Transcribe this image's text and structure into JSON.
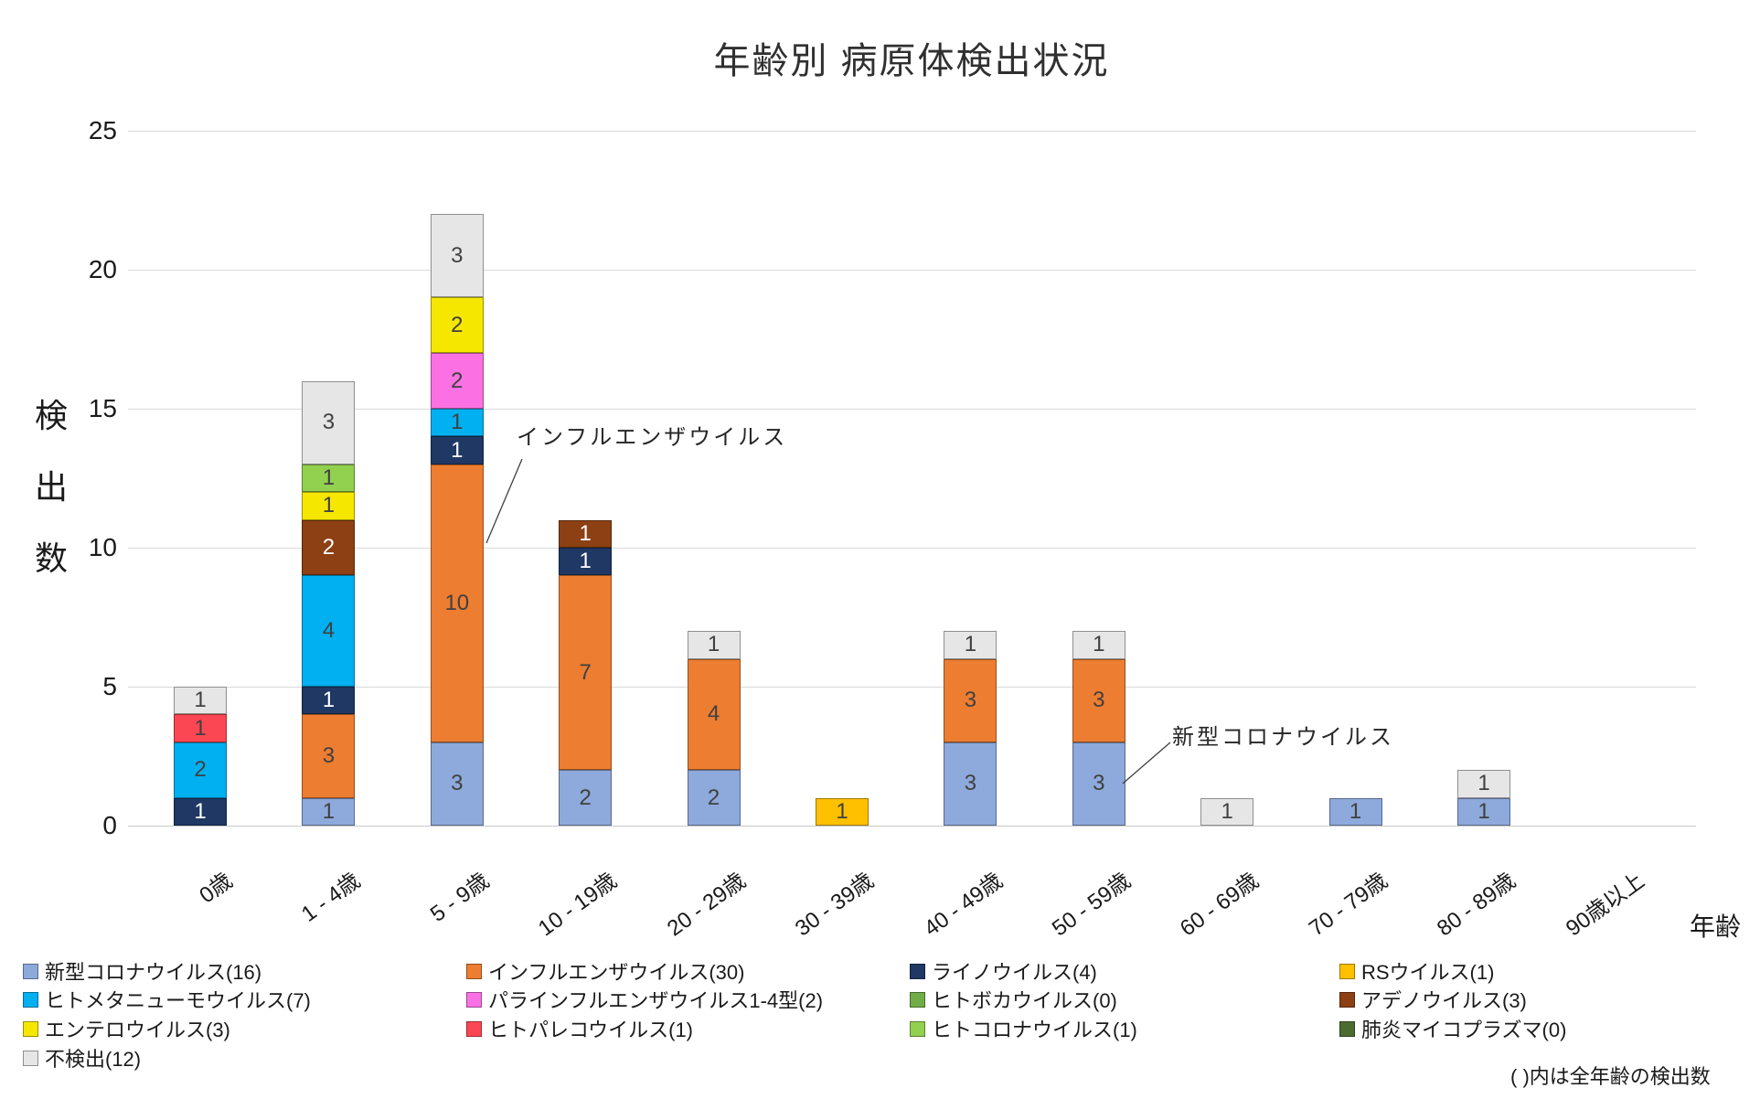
{
  "chart_data": {
    "type": "bar",
    "stacked": true,
    "title": "年齢別 病原体検出状況",
    "ylabel": "検出数",
    "xlabel": "年齢",
    "ylim": [
      0,
      25
    ],
    "yticks": [
      0,
      5,
      10,
      15,
      20,
      25
    ],
    "grid": "horizontal",
    "legend_position": "bottom",
    "categories": [
      "0歳",
      "1 - 4歳",
      "5 - 9歳",
      "10 - 19歳",
      "20 - 29歳",
      "30 - 39歳",
      "40 - 49歳",
      "50 - 59歳",
      "60 - 69歳",
      "70 - 79歳",
      "80 - 89歳",
      "90歳以上"
    ],
    "series": [
      {
        "name": "新型コロナウイルス",
        "total": 16,
        "legend_label": "新型コロナウイルス(16)",
        "color": "#8EA9DB",
        "values": [
          0,
          1,
          3,
          2,
          2,
          0,
          3,
          3,
          0,
          1,
          1,
          0
        ]
      },
      {
        "name": "インフルエンザウイルス",
        "total": 30,
        "legend_label": "インフルエンザウイルス(30)",
        "color": "#ED7D31",
        "values": [
          0,
          3,
          10,
          7,
          4,
          0,
          3,
          3,
          0,
          0,
          0,
          0
        ]
      },
      {
        "name": "ライノウイルス",
        "total": 4,
        "legend_label": "ライノウイルス(4)",
        "color": "#1F3864",
        "values": [
          1,
          1,
          1,
          1,
          0,
          0,
          0,
          0,
          0,
          0,
          0,
          0
        ]
      },
      {
        "name": "RSウイルス",
        "total": 1,
        "legend_label": "RSウイルス(1)",
        "color": "#FFC000",
        "values": [
          0,
          0,
          0,
          0,
          0,
          1,
          0,
          0,
          0,
          0,
          0,
          0
        ]
      },
      {
        "name": "ヒトメタニューモウイルス",
        "total": 7,
        "legend_label": "ヒトメタニューモウイルス(7)",
        "color": "#00B0F0",
        "values": [
          2,
          4,
          1,
          0,
          0,
          0,
          0,
          0,
          0,
          0,
          0,
          0
        ]
      },
      {
        "name": "パラインフルエンザウイルス1-4型",
        "total": 2,
        "legend_label": "パラインフルエンザウイルス1-4型(2)",
        "color": "#FB71E3",
        "values": [
          0,
          0,
          2,
          0,
          0,
          0,
          0,
          0,
          0,
          0,
          0,
          0
        ]
      },
      {
        "name": "ヒトボカウイルス",
        "total": 0,
        "legend_label": "ヒトボカウイルス(0)",
        "color": "#70AD47",
        "values": [
          0,
          0,
          0,
          0,
          0,
          0,
          0,
          0,
          0,
          0,
          0,
          0
        ]
      },
      {
        "name": "アデノウイルス",
        "total": 3,
        "legend_label": "アデノウイルス(3)",
        "color": "#8C4013",
        "values": [
          0,
          2,
          0,
          1,
          0,
          0,
          0,
          0,
          0,
          0,
          0,
          0
        ]
      },
      {
        "name": "エンテロウイルス",
        "total": 3,
        "legend_label": "エンテロウイルス(3)",
        "color": "#F5E700",
        "values": [
          0,
          1,
          2,
          0,
          0,
          0,
          0,
          0,
          0,
          0,
          0,
          0
        ]
      },
      {
        "name": "ヒトパレコウイルス",
        "total": 1,
        "legend_label": "ヒトパレコウイルス(1)",
        "color": "#FB4753",
        "values": [
          1,
          0,
          0,
          0,
          0,
          0,
          0,
          0,
          0,
          0,
          0,
          0
        ]
      },
      {
        "name": "ヒトコロナウイルス",
        "total": 1,
        "legend_label": "ヒトコロナウイルス(1)",
        "color": "#92D050",
        "values": [
          0,
          1,
          0,
          0,
          0,
          0,
          0,
          0,
          0,
          0,
          0,
          0
        ]
      },
      {
        "name": "肺炎マイコプラズマ",
        "total": 0,
        "legend_label": "肺炎マイコプラズマ(0)",
        "color": "#4C6B2F",
        "values": [
          0,
          0,
          0,
          0,
          0,
          0,
          0,
          0,
          0,
          0,
          0,
          0
        ]
      },
      {
        "name": "不検出",
        "total": 12,
        "legend_label": "不検出(12)",
        "color": "#E7E6E6",
        "values": [
          1,
          3,
          3,
          0,
          1,
          0,
          1,
          1,
          1,
          0,
          1,
          0
        ]
      }
    ],
    "annotations": [
      {
        "text": "インフルエンザウイルス",
        "target_series": "インフルエンザウイルス",
        "target_category": "5 - 9歳"
      },
      {
        "text": "新型コロナウイルス",
        "target_series": "新型コロナウイルス",
        "target_category": "50 - 59歳"
      }
    ],
    "note": "( )内は全年齢の検出数"
  }
}
